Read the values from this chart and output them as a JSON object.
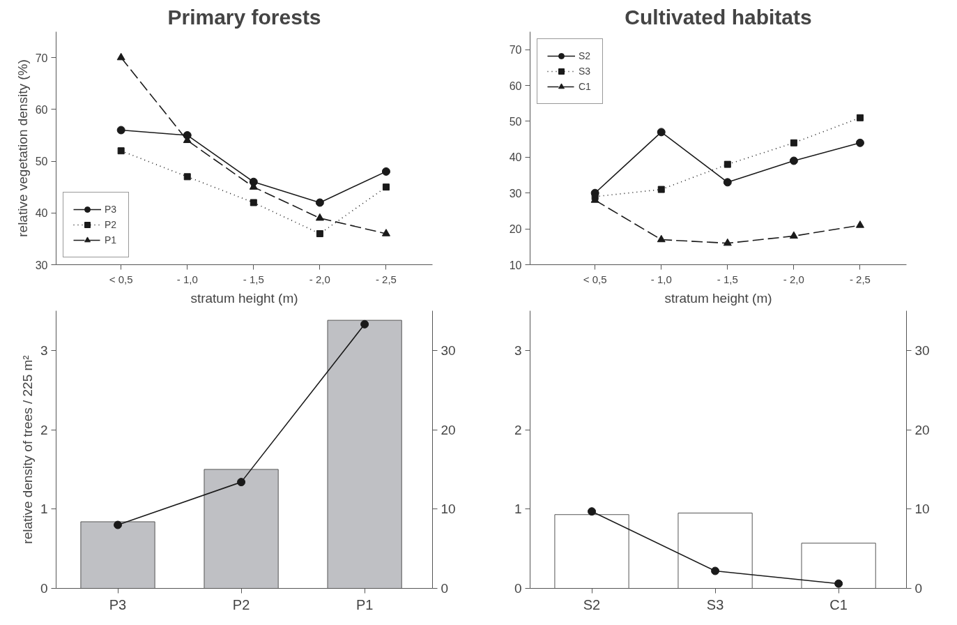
{
  "chart_data": [
    {
      "type": "line",
      "title": "Primary forests",
      "xlabel": "stratum height (m)",
      "ylabel": "relative vegetation density (%)",
      "categories": [
        "< 0,5",
        "- 1,0",
        "- 1,5",
        "- 2,0",
        "- 2,5"
      ],
      "ylim": [
        30,
        75
      ],
      "yticks": [
        30,
        40,
        50,
        60,
        70
      ],
      "grid": false,
      "legend": "bottom left",
      "series": [
        {
          "name": "P3",
          "color": "#1a1a1a",
          "marker": "circle",
          "line_style": "solid",
          "values": [
            56,
            55,
            46,
            42,
            48
          ]
        },
        {
          "name": "P2",
          "color": "#1a1a1a",
          "marker": "square",
          "line_style": "dotted",
          "values": [
            52,
            47,
            42,
            36,
            45
          ]
        },
        {
          "name": "P1",
          "color": "#1a1a1a",
          "marker": "triangle",
          "line_style": "dashed",
          "values": [
            70,
            54,
            45,
            39,
            36
          ]
        }
      ]
    },
    {
      "type": "line",
      "title": "Cultivated habitats",
      "xlabel": "stratum height (m)",
      "categories": [
        "< 0,5",
        "- 1,0",
        "- 1,5",
        "- 2,0",
        "- 2,5"
      ],
      "ylim": [
        10,
        75
      ],
      "yticks": [
        10,
        20,
        30,
        40,
        50,
        60,
        70
      ],
      "grid": false,
      "legend": "top left",
      "series": [
        {
          "name": "S2",
          "color": "#1a1a1a",
          "marker": "circle",
          "line_style": "solid",
          "values": [
            30,
            47,
            33,
            39,
            44
          ]
        },
        {
          "name": "S3",
          "color": "#1a1a1a",
          "marker": "square",
          "line_style": "dotted",
          "values": [
            29,
            31,
            38,
            44,
            51
          ]
        },
        {
          "name": "C1",
          "color": "#1a1a1a",
          "marker": "triangle",
          "line_style": "dashed",
          "values": [
            28,
            17,
            16,
            18,
            21
          ]
        }
      ]
    },
    {
      "type": "bar",
      "ylabel": "relative density of trees / 225 m²",
      "categories": [
        "P3",
        "P2",
        "P1"
      ],
      "ylim": [
        0,
        3.5
      ],
      "yticks": [
        0,
        1,
        2,
        3
      ],
      "y2lim": [
        0,
        35
      ],
      "y2ticks": [
        0,
        10,
        20,
        30
      ],
      "grid": false,
      "legend": false,
      "series": [
        {
          "type": "bar",
          "color": "#bfc0c4",
          "values": [
            0.84,
            1.5,
            3.38
          ]
        },
        {
          "type": "line",
          "axis": "y2",
          "color": "#1a1a1a",
          "marker": "circle",
          "line_style": "solid",
          "values": [
            8.0,
            13.4,
            33.3
          ]
        }
      ]
    },
    {
      "type": "bar",
      "categories": [
        "S2",
        "S3",
        "C1"
      ],
      "ylim": [
        0,
        3.5
      ],
      "yticks": [
        0,
        1,
        2,
        3
      ],
      "y2lim": [
        0,
        35
      ],
      "y2ticks": [
        0,
        10,
        20,
        30
      ],
      "grid": false,
      "legend": false,
      "series": [
        {
          "type": "bar",
          "color": "#ffffff",
          "values": [
            0.93,
            0.95,
            0.57
          ]
        },
        {
          "type": "line",
          "axis": "y2",
          "color": "#1a1a1a",
          "marker": "circle",
          "line_style": "solid",
          "values": [
            9.7,
            2.2,
            0.6
          ]
        }
      ]
    }
  ]
}
